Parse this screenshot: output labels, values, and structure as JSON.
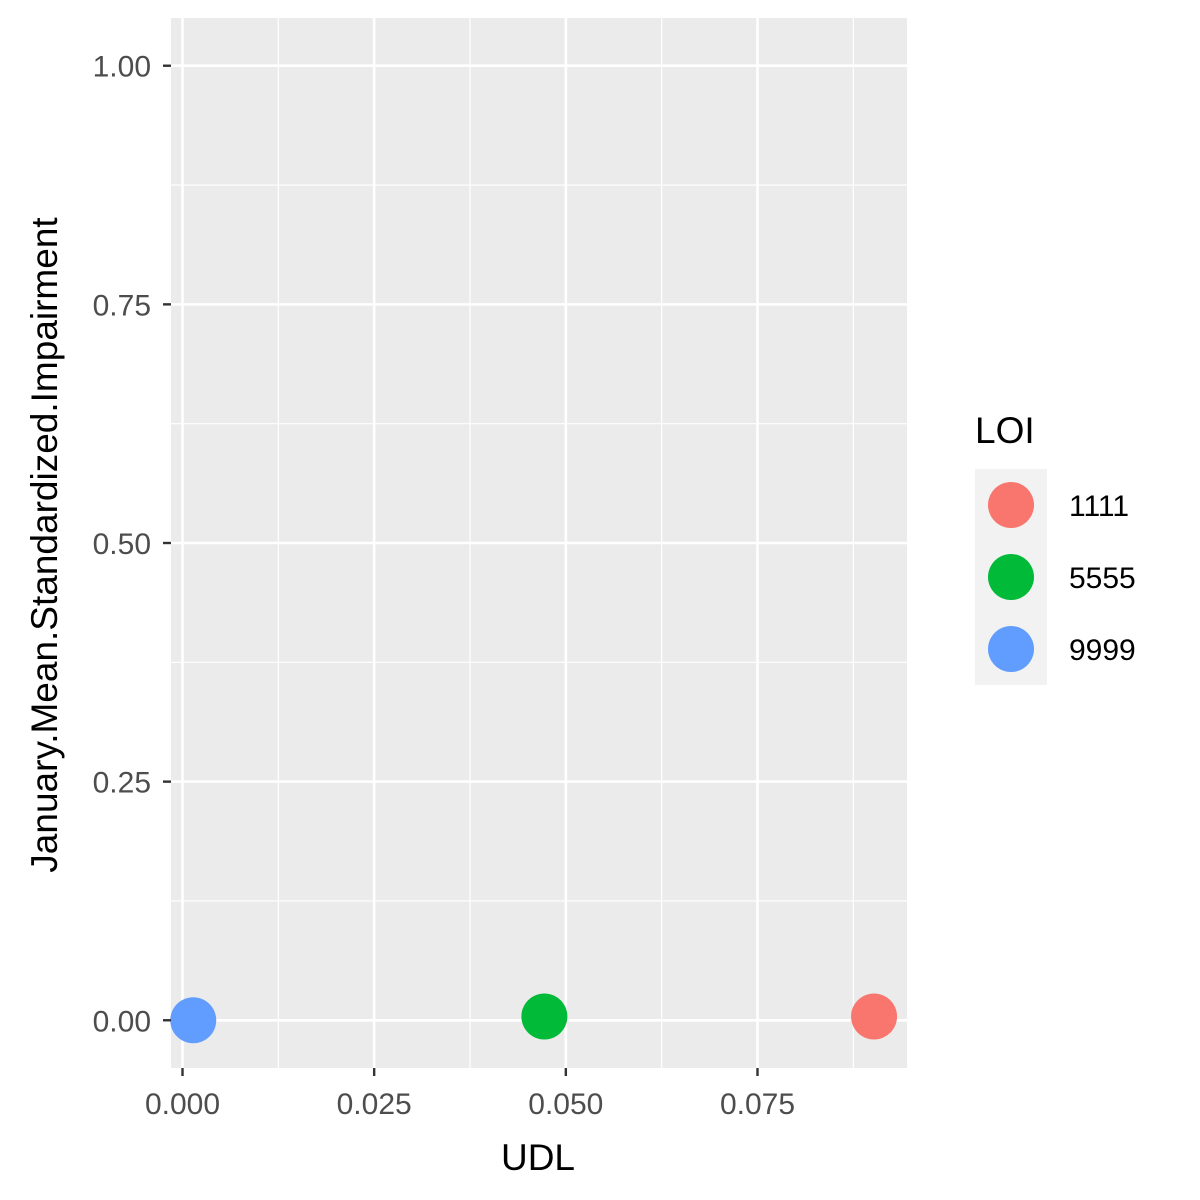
{
  "chart_data": {
    "type": "scatter",
    "xlabel": "UDL",
    "ylabel": "January.Mean.Standardized.Impairment",
    "xlim": [
      -0.0015,
      0.0945
    ],
    "ylim": [
      -0.05,
      1.05
    ],
    "x_ticks": [
      0.0,
      0.025,
      0.05,
      0.075
    ],
    "x_tick_labels": [
      "0.000",
      "0.025",
      "0.050",
      "0.075"
    ],
    "y_ticks": [
      0.0,
      0.25,
      0.5,
      0.75,
      1.0
    ],
    "y_tick_labels": [
      "0.00",
      "0.25",
      "0.50",
      "0.75",
      "1.00"
    ],
    "grid": true,
    "legend": {
      "title": "LOI",
      "placement": "right"
    },
    "series": [
      {
        "name": "1111",
        "color": "#F8766D",
        "x": [
          0.0902
        ],
        "y": [
          0.004
        ]
      },
      {
        "name": "5555",
        "color": "#00BA38",
        "x": [
          0.0472
        ],
        "y": [
          0.004
        ]
      },
      {
        "name": "9999",
        "color": "#619CFF",
        "x": [
          0.0014
        ],
        "y": [
          0.0
        ]
      }
    ],
    "colors": {
      "panel_background": "#EBEBEB",
      "grid": "#FFFFFF",
      "legend_key_background": "#F2F2F2"
    }
  }
}
